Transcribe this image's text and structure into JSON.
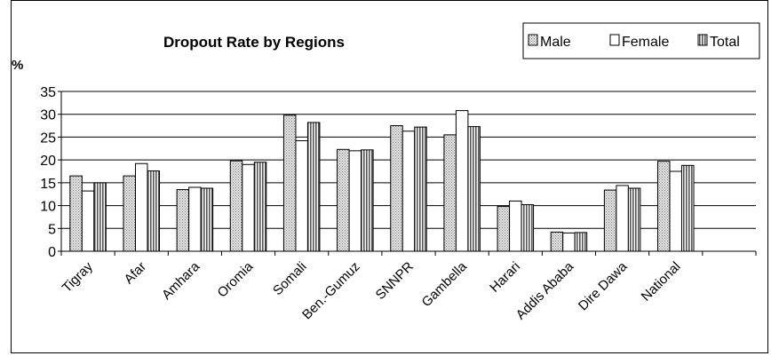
{
  "chart_data": {
    "type": "bar",
    "title": "Dropout Rate by Regions",
    "ylabel": "%",
    "xlabel": "",
    "ylim": [
      0,
      35
    ],
    "yticks": [
      0,
      5,
      10,
      15,
      20,
      25,
      30,
      35
    ],
    "grid": true,
    "legend_position": "top-right",
    "categories": [
      "Tigray",
      "Afar",
      "Amhara",
      "Oromia",
      "Somali",
      "Ben.-Gumuz",
      "SNNPR",
      "Gambella",
      "Harari",
      "Addis Ababa",
      "Dire Dawa",
      "National"
    ],
    "series": [
      {
        "name": "Male",
        "pattern": "dotted-gray",
        "values": [
          16.5,
          16.5,
          13.5,
          19.8,
          29.8,
          22.3,
          27.5,
          25.5,
          9.8,
          4.2,
          13.4,
          19.7
        ]
      },
      {
        "name": "Female",
        "pattern": "white",
        "values": [
          13.2,
          19.2,
          14.0,
          19.0,
          24.2,
          22.0,
          26.3,
          30.8,
          11.0,
          4.0,
          14.4,
          17.5
        ]
      },
      {
        "name": "Total",
        "pattern": "vertical-stripes",
        "values": [
          15.0,
          17.6,
          13.8,
          19.5,
          28.2,
          22.2,
          27.2,
          27.3,
          10.2,
          4.1,
          13.8,
          18.8
        ]
      }
    ],
    "colors": {
      "axis": "#000000",
      "grid": "#000000",
      "bar_outline": "#000000",
      "male_fill": "#d4d4d4",
      "female_fill": "#ffffff",
      "total_fill": "#808080"
    }
  }
}
